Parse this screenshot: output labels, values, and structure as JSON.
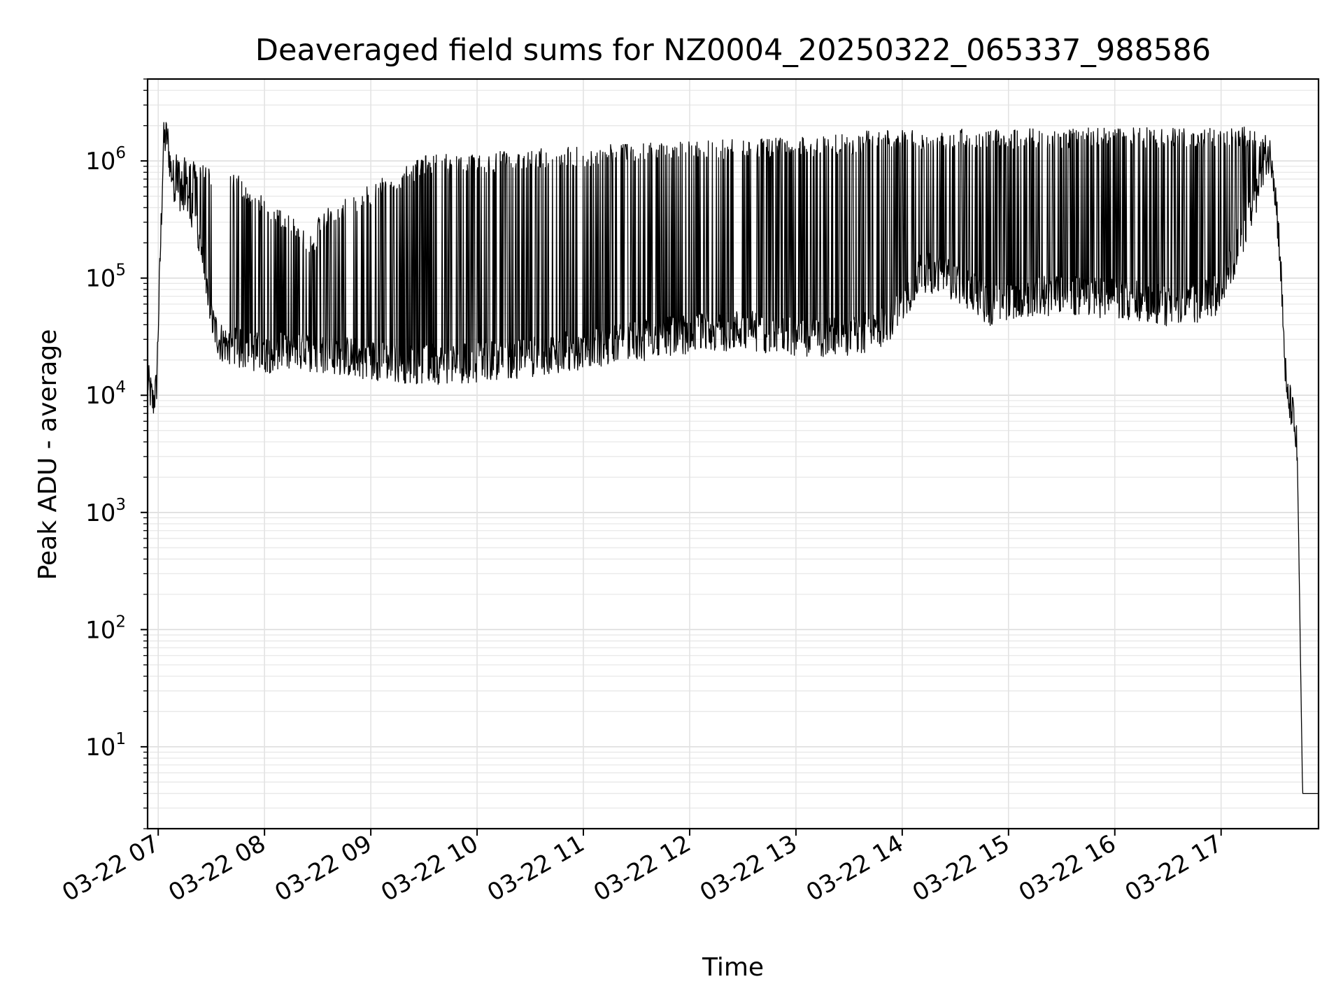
{
  "chart_data": {
    "type": "line",
    "title": "Deaveraged field sums for NZ0004_20250322_065337_988586",
    "xlabel": "Time",
    "ylabel": "Peak ADU - average",
    "yscale": "log",
    "ylim": [
      2,
      5000000
    ],
    "xlim": [
      "2025-03-22 06:54",
      "2025-03-22 17:55"
    ],
    "grid": true,
    "legend": "none",
    "line_color": "#000000",
    "x_tick_labels": [
      "03-22 07",
      "03-22 08",
      "03-22 09",
      "03-22 10",
      "03-22 11",
      "03-22 12",
      "03-22 13",
      "03-22 14",
      "03-22 15",
      "03-22 16",
      "03-22 17"
    ],
    "y_tick_labels": [
      {
        "base": "10",
        "exp": "1"
      },
      {
        "base": "10",
        "exp": "2"
      },
      {
        "base": "10",
        "exp": "3"
      },
      {
        "base": "10",
        "exp": "4"
      },
      {
        "base": "10",
        "exp": "5"
      },
      {
        "base": "10",
        "exp": "6"
      }
    ],
    "series": [
      {
        "baseline": {
          "x": [
            "2025-03-22 06:54",
            "2025-03-22 06:57",
            "2025-03-22 06:59",
            "2025-03-22 07:03",
            "2025-03-22 07:05",
            "2025-03-22 07:07",
            "2025-03-22 07:10",
            "2025-03-22 07:15",
            "2025-03-22 07:20",
            "2025-03-22 07:25",
            "2025-03-22 07:30",
            "2025-03-22 07:35",
            "2025-03-22 07:40",
            "2025-03-22 07:45",
            "2025-03-22 07:50",
            "2025-03-22 08:00",
            "2025-03-22 08:30",
            "2025-03-22 09:00",
            "2025-03-22 09:30",
            "2025-03-22 10:00",
            "2025-03-22 10:30",
            "2025-03-22 11:00",
            "2025-03-22 11:30",
            "2025-03-22 12:00",
            "2025-03-22 12:30",
            "2025-03-22 13:00",
            "2025-03-22 13:30",
            "2025-03-22 13:50",
            "2025-03-22 14:00",
            "2025-03-22 14:10",
            "2025-03-22 14:20",
            "2025-03-22 14:30",
            "2025-03-22 14:50",
            "2025-03-22 15:00",
            "2025-03-22 15:30",
            "2025-03-22 16:00",
            "2025-03-22 16:30",
            "2025-03-22 16:50",
            "2025-03-22 17:00",
            "2025-03-22 17:10",
            "2025-03-22 17:20",
            "2025-03-22 17:25",
            "2025-03-22 17:29",
            "2025-03-22 17:33",
            "2025-03-22 17:37",
            "2025-03-22 17:40",
            "2025-03-22 17:43",
            "2025-03-22 17:46",
            "2025-03-22 17:48",
            "2025-03-22 17:49",
            "2025-03-22 17:50",
            "2025-03-22 17:55"
          ],
          "y": [
            14000,
            9000,
            12000,
            1500000,
            1700000,
            900000,
            600000,
            550000,
            350000,
            150000,
            45000,
            30000,
            28000,
            26000,
            25000,
            24000,
            24000,
            21000,
            19000,
            20000,
            22000,
            26000,
            30000,
            35000,
            38000,
            33000,
            32000,
            40000,
            60000,
            120000,
            110000,
            100000,
            60000,
            70000,
            75000,
            70000,
            60000,
            65000,
            80000,
            200000,
            500000,
            1200000,
            1100000,
            200000,
            10000,
            8000,
            3500,
            4,
            4,
            4,
            4,
            4
          ]
        },
        "spike_peaks": [
          {
            "x": [
              "2025-03-22 07:10",
              "2025-03-22 07:30"
            ],
            "y": [
              1000000,
              700000
            ]
          },
          {
            "x": [
              "2025-03-22 07:40",
              "2025-03-22 08:30"
            ],
            "y": [
              700000,
              180000
            ]
          },
          {
            "x": [
              "2025-03-22 08:30",
              "2025-03-22 09:30"
            ],
            "y": [
              300000,
              900000
            ]
          },
          {
            "x": [
              "2025-03-22 09:30",
              "2025-03-22 11:00"
            ],
            "y": [
              900000,
              1100000
            ]
          },
          {
            "x": [
              "2025-03-22 11:00",
              "2025-03-22 13:40"
            ],
            "y": [
              1100000,
              1400000
            ]
          },
          {
            "x": [
              "2025-03-22 13:40",
              "2025-03-22 17:25"
            ],
            "y": [
              1500000,
              1600000
            ]
          }
        ]
      }
    ]
  }
}
